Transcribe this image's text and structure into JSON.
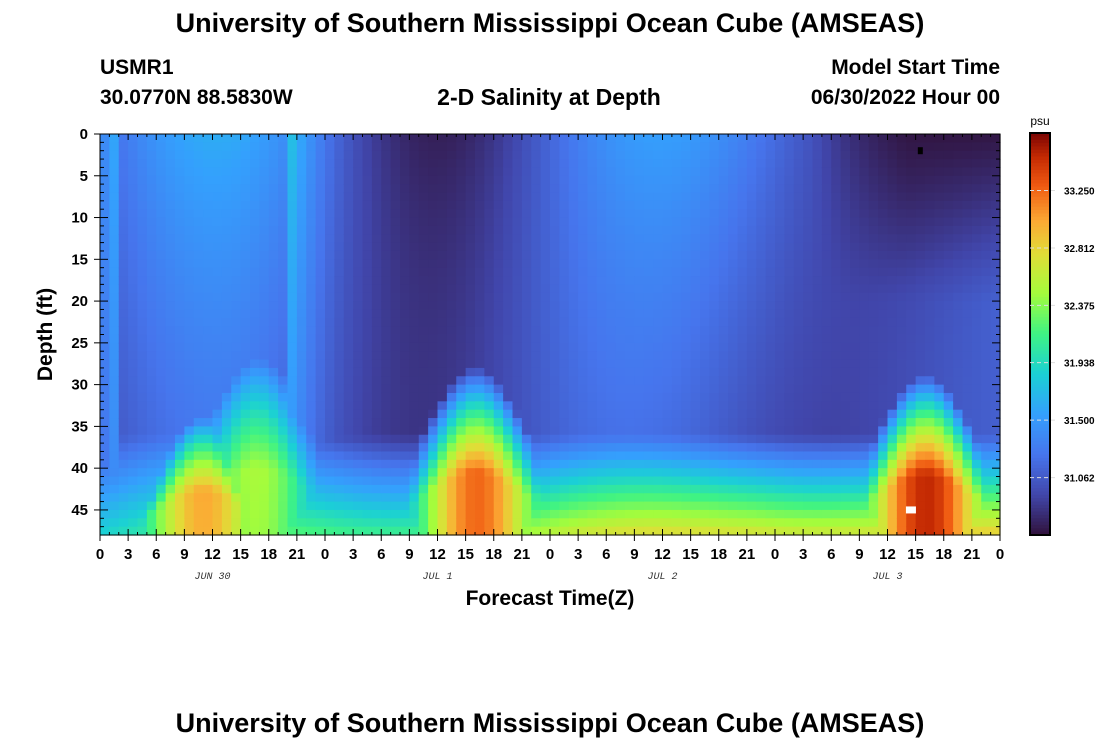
{
  "header": {
    "title_top": "University of Southern Mississippi Ocean Cube (AMSEAS)",
    "station_id": "USMR1",
    "station_coords": "30.0770N  88.5830W",
    "plot_title": "2-D Salinity at Depth",
    "model_start_label": "Model Start Time",
    "model_start_value": "06/30/2022 Hour 00",
    "title_bottom": "University of Southern Mississippi Ocean Cube (AMSEAS)"
  },
  "chart_data": {
    "type": "heatmap",
    "title": "2-D Salinity at Depth",
    "xlabel": "Forecast Time(Z)",
    "ylabel": "Depth (ft)",
    "x_tick_labels": [
      "0",
      "3",
      "6",
      "9",
      "12",
      "15",
      "18",
      "21",
      "0",
      "3",
      "6",
      "9",
      "12",
      "15",
      "18",
      "21",
      "0",
      "3",
      "6",
      "9",
      "12",
      "15",
      "18",
      "21",
      "0",
      "3",
      "6",
      "9",
      "12",
      "15",
      "18",
      "21",
      "0"
    ],
    "x_range_hours": [
      0,
      96
    ],
    "day_labels": [
      {
        "label": "JUN 30",
        "hour": 12
      },
      {
        "label": "JUL 1",
        "hour": 36
      },
      {
        "label": "JUL 2",
        "hour": 60
      },
      {
        "label": "JUL 3",
        "hour": 84
      }
    ],
    "y_ticks": [
      0,
      5,
      10,
      15,
      20,
      25,
      30,
      35,
      40,
      45
    ],
    "y_range_ft": [
      0,
      48
    ],
    "y_inverted": true,
    "colorbar": {
      "unit": "psu",
      "min": 30.625,
      "max": 33.688,
      "tick_values": [
        33.25,
        32.812,
        32.375,
        31.938,
        31.5,
        31.062
      ],
      "tick_labels": [
        "33.250",
        "32.812",
        "32.375",
        "31.938",
        "31.500",
        "31.062"
      ]
    },
    "field_description": {
      "background_surface_psu": 31.15,
      "bottom_peaks": [
        {
          "hour": 11,
          "peak_psu": 32.95,
          "top_depth_ft": 34
        },
        {
          "hour": 17,
          "peak_psu": 32.45,
          "top_depth_ft": 27
        },
        {
          "hour": 40,
          "peak_psu": 33.5,
          "top_depth_ft": 28
        },
        {
          "hour": 88,
          "peak_psu": 33.65,
          "top_depth_ft": 29
        }
      ],
      "freshwater_patch": {
        "hour_start": 80,
        "hour_end": 96,
        "depth_ft": [
          0,
          18
        ],
        "min_psu": 30.65
      }
    },
    "markers": [
      {
        "hour": 87.5,
        "depth_ft": 2,
        "color": "#000000"
      },
      {
        "hour": 86.5,
        "depth_ft": 45,
        "color": "#ffffff"
      }
    ]
  }
}
